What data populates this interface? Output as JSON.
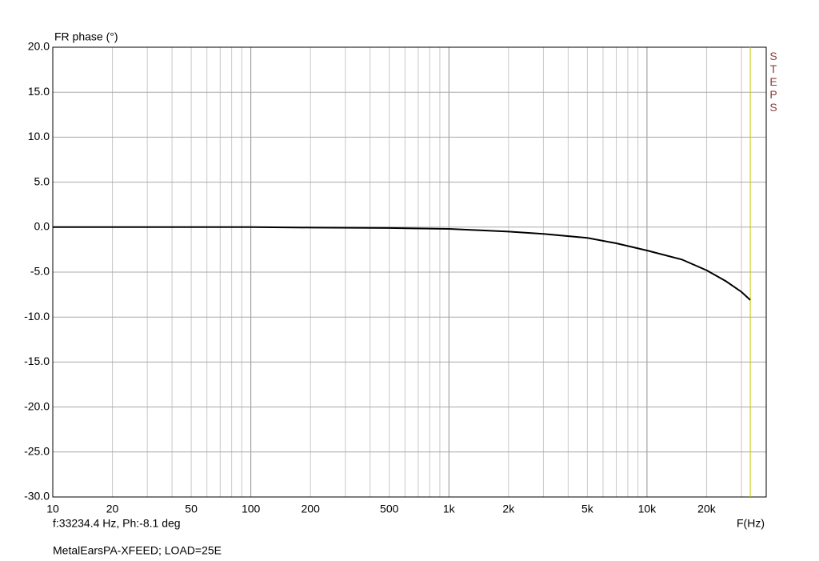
{
  "chart_data": {
    "type": "line",
    "title": "FR phase (°)",
    "x_label": "F(Hz)",
    "cursor_readout": "f:33234.4 Hz, Ph:-8.1 deg",
    "legend_text": "MetalEarsPA-XFEED; LOAD=25E",
    "side_label": "STEPS",
    "x_scale": "log",
    "grid": true,
    "cursor_x": 33234.4,
    "cursor_color": "#c8c800",
    "xlim": [
      10,
      40000
    ],
    "ylim": [
      -30,
      20
    ],
    "xticks": [
      10,
      20,
      50,
      100,
      200,
      500,
      {
        "value": 1000,
        "label": "1k"
      },
      {
        "value": 2000,
        "label": "2k"
      },
      {
        "value": 5000,
        "label": "5k"
      },
      {
        "value": 10000,
        "label": "10k"
      },
      {
        "value": 20000,
        "label": "20k"
      }
    ],
    "xticks_minor": [
      30,
      40,
      60,
      70,
      80,
      90,
      300,
      400,
      600,
      700,
      800,
      900,
      3000,
      4000,
      6000,
      7000,
      8000,
      9000,
      30000,
      40000
    ],
    "yticks": [
      {
        "value": 20,
        "label": "20.0"
      },
      {
        "value": 15,
        "label": "15.0"
      },
      {
        "value": 10,
        "label": "10.0"
      },
      {
        "value": 5,
        "label": "5.0"
      },
      {
        "value": 0,
        "label": "0.0"
      },
      {
        "value": -5,
        "label": "-5.0"
      },
      {
        "value": -10,
        "label": "-10.0"
      },
      {
        "value": -15,
        "label": "-15.0"
      },
      {
        "value": -20,
        "label": "-20.0"
      },
      {
        "value": -25,
        "label": "-25.0"
      },
      {
        "value": -30,
        "label": "-30.0"
      }
    ],
    "series": [
      {
        "name": "MetalEarsPA-XFEED; LOAD=25E",
        "color": "#000000",
        "x": [
          10,
          100,
          200,
          500,
          1000,
          2000,
          3000,
          5000,
          7000,
          10000,
          15000,
          20000,
          25000,
          30000,
          33234.4
        ],
        "values": [
          0,
          0,
          -0.05,
          -0.1,
          -0.2,
          -0.5,
          -0.75,
          -1.2,
          -1.8,
          -2.6,
          -3.6,
          -4.8,
          -6.0,
          -7.2,
          -8.1
        ]
      }
    ]
  }
}
